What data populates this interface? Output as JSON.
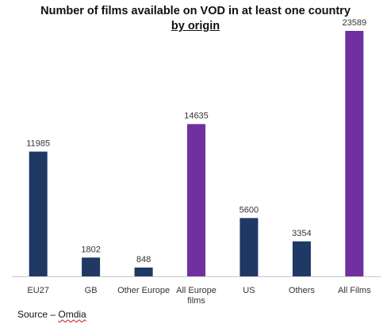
{
  "chart_data": {
    "type": "bar",
    "title": "Number of films available on VOD in at least one country",
    "subtitle": "by origin",
    "xlabel": "",
    "ylabel": "",
    "ylim": [
      0,
      24500
    ],
    "grid": false,
    "legend": "none",
    "categories": [
      "EU27",
      "GB",
      "Other Europe",
      "All Europe films",
      "US",
      "Others",
      "All Films"
    ],
    "category_lines": [
      [
        "EU27"
      ],
      [
        "GB"
      ],
      [
        "Other Europe"
      ],
      [
        "All Europe",
        "films"
      ],
      [
        "US"
      ],
      [
        "Others"
      ],
      [
        "All Films"
      ]
    ],
    "values": [
      11985,
      1802,
      848,
      14635,
      5600,
      3354,
      23589
    ],
    "value_labels": [
      "11985",
      "1802",
      "848",
      "14635",
      "5600",
      "3354",
      "23589"
    ],
    "colors": [
      "#1f3864",
      "#1f3864",
      "#1f3864",
      "#7030a0",
      "#1f3864",
      "#1f3864",
      "#7030a0"
    ]
  },
  "source": {
    "prefix": "Source – ",
    "brand": "Omdia"
  }
}
